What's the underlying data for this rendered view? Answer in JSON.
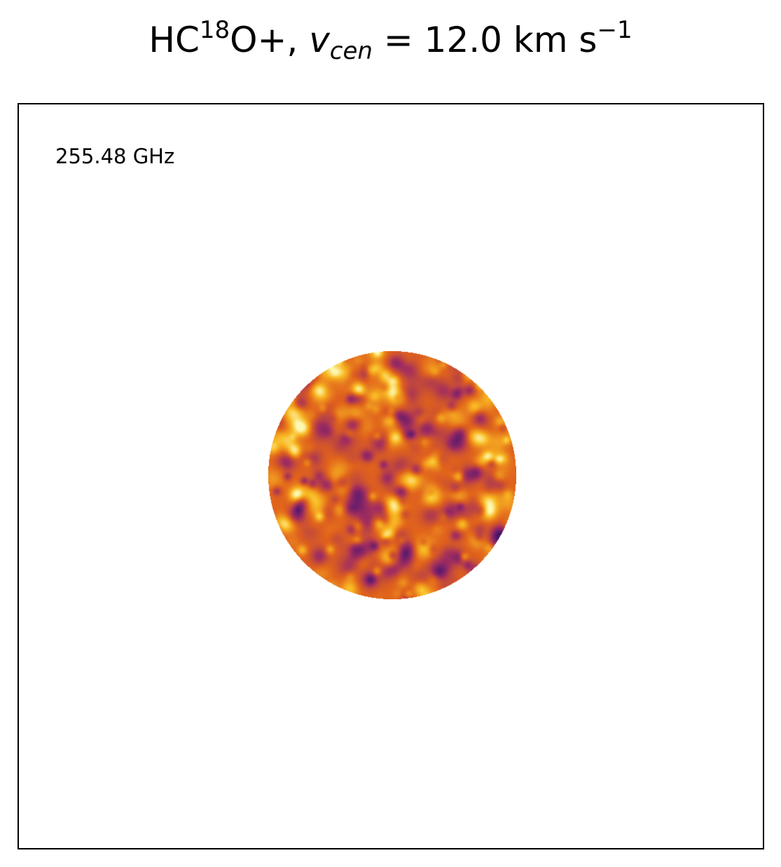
{
  "figure": {
    "title": {
      "molecule_prefix": "HC",
      "isotope": "18",
      "molecule_suffix": "O+, ",
      "velocity_symbol": "v",
      "velocity_subscript": "cen",
      "equals": " = ",
      "value": " 12.0 km s",
      "unit_exponent": "−1"
    },
    "frequency_label": "255.48 GHz"
  },
  "map": {
    "shape": "circle",
    "colormap": "inferno",
    "colors": {
      "dark": "#1a0b40",
      "mid_purple": "#5c1a6e",
      "magenta": "#a32e5e",
      "orange": "#e0621c",
      "bright": "#f9b821",
      "peak": "#fcf8b0"
    }
  }
}
